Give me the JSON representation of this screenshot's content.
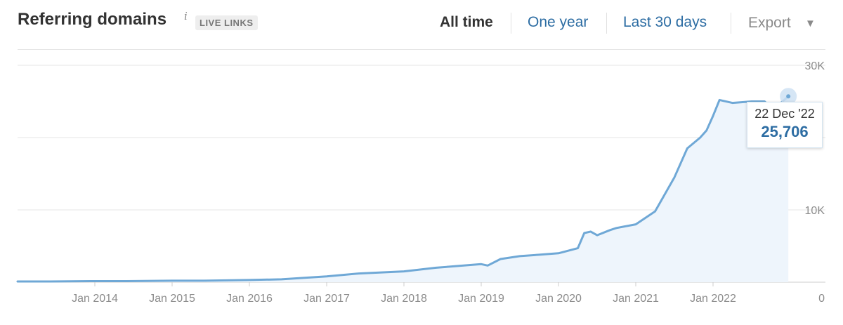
{
  "header": {
    "title": "Referring domains",
    "info_icon": "info-icon",
    "badge": "LIVE LINKS",
    "ranges": [
      {
        "label": "All time",
        "active": true
      },
      {
        "label": "One year",
        "active": false
      },
      {
        "label": "Last 30 days",
        "active": false
      }
    ],
    "export_label": "Export",
    "export_caret": "▼"
  },
  "tooltip": {
    "date": "22 Dec '22",
    "value": "25,706"
  },
  "colors": {
    "line": "#6fa8d6",
    "fill": "#eef5fc",
    "accent": "#2d6da3",
    "grid": "#e6e6e6"
  },
  "chart_data": {
    "type": "area",
    "xlabel": "",
    "ylabel": "",
    "x_tick_labels": [
      "Jan 2014",
      "Jan 2015",
      "Jan 2016",
      "Jan 2017",
      "Jan 2018",
      "Jan 2019",
      "Jan 2020",
      "Jan 2021",
      "Jan 2022"
    ],
    "y_tick_labels": [
      "0",
      "10K",
      "",
      "30K"
    ],
    "ylim": [
      0,
      30000
    ],
    "grid": true,
    "series": [
      {
        "x": [
          "2013-02",
          "2013-06",
          "2014-01",
          "2014-06",
          "2015-01",
          "2015-06",
          "2016-01",
          "2016-06",
          "2017-01",
          "2017-06",
          "2018-01",
          "2018-06",
          "2019-01",
          "2019-02",
          "2019-04",
          "2019-07",
          "2019-10",
          "2020-01",
          "2020-04",
          "2020-05",
          "2020-06",
          "2020-07",
          "2020-09",
          "2020-10",
          "2021-01",
          "2021-04",
          "2021-07",
          "2021-09",
          "2021-11",
          "2021-12",
          "2022-01",
          "2022-02",
          "2022-04",
          "2022-07",
          "2022-09",
          "2022-10",
          "2022-11",
          "2022-12-22"
        ],
        "values": [
          100,
          100,
          150,
          150,
          200,
          200,
          300,
          400,
          800,
          1200,
          1500,
          2000,
          2500,
          2300,
          3200,
          3600,
          3800,
          4000,
          4700,
          6800,
          7000,
          6500,
          7200,
          7500,
          8000,
          9800,
          14500,
          18500,
          20000,
          21000,
          23000,
          25200,
          24800,
          25000,
          25000,
          24200,
          24400,
          25706
        ]
      }
    ]
  }
}
